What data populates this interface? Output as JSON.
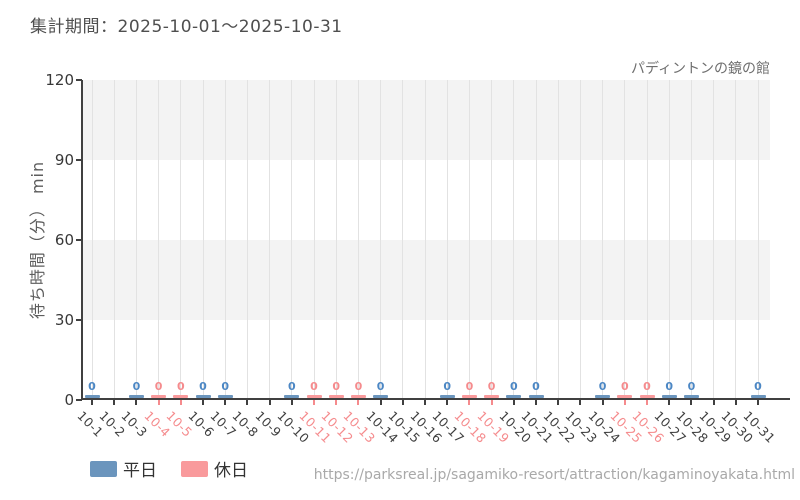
{
  "header": {
    "period_label": "集計期間：2025-10-01～2025-10-31"
  },
  "chart_data": {
    "type": "bar",
    "title": "パディントンの鏡の館",
    "ylabel": "待ち時間（分） min",
    "xlabel": "",
    "ylim": [
      0,
      120
    ],
    "yticks": [
      0,
      30,
      60,
      90,
      120
    ],
    "grid": "alternating horizontal bands every 30 units, vertical gridline per day",
    "legend_position": "bottom-left",
    "categories": [
      "10-1",
      "10-2",
      "10-3",
      "10-4",
      "10-5",
      "10-6",
      "10-7",
      "10-8",
      "10-9",
      "10-10",
      "10-11",
      "10-12",
      "10-13",
      "10-14",
      "10-15",
      "10-16",
      "10-17",
      "10-18",
      "10-19",
      "10-20",
      "10-21",
      "10-22",
      "10-23",
      "10-24",
      "10-25",
      "10-26",
      "10-27",
      "10-28",
      "10-29",
      "10-30",
      "10-31"
    ],
    "series": [
      {
        "name": "平日",
        "color": "#6b95bd",
        "label_color": "#4c87c4",
        "values": [
          0,
          null,
          0,
          null,
          null,
          0,
          0,
          null,
          null,
          0,
          null,
          null,
          null,
          0,
          null,
          null,
          0,
          null,
          null,
          0,
          0,
          null,
          null,
          0,
          null,
          null,
          0,
          0,
          null,
          null,
          0
        ]
      },
      {
        "name": "休日",
        "color": "#f99a9c",
        "label_color": "#f58b8d",
        "values": [
          null,
          null,
          null,
          0,
          0,
          null,
          null,
          null,
          null,
          null,
          0,
          0,
          0,
          null,
          null,
          null,
          null,
          0,
          0,
          null,
          null,
          null,
          null,
          null,
          0,
          0,
          null,
          null,
          null,
          null,
          null
        ]
      }
    ],
    "annotations": "each bar is labeled with its value 0; days with no bar had no recorded data",
    "axis_colors": {
      "weekday_label": "#3f3f3f",
      "holiday_label": "#f58b8d",
      "axis_line": "#404040",
      "gridline": "#e2e2e2",
      "band_gray": "#f3f3f3"
    }
  },
  "footer": {
    "url": "https://parksreal.jp/sagamiko-resort/attraction/kagaminoyakata.html"
  }
}
